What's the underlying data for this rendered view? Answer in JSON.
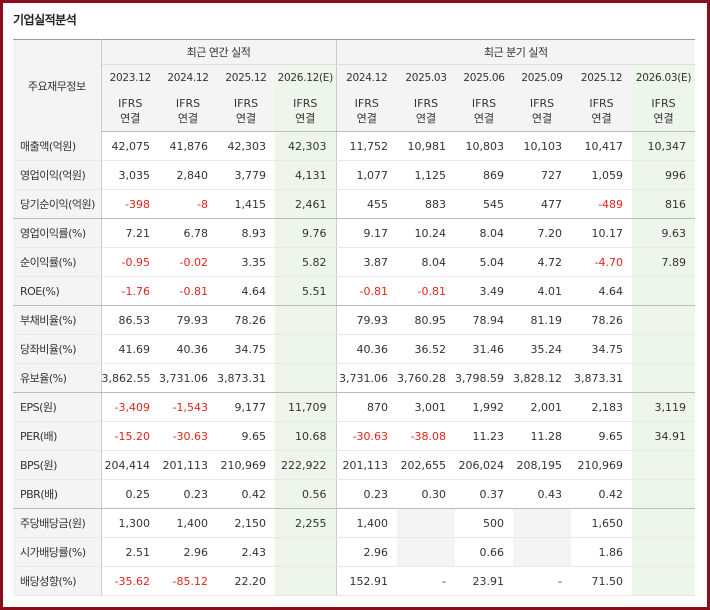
{
  "title": "기업실적분석",
  "header": {
    "label_col": "주요재무정보",
    "annual_group": "최근 연간 실적",
    "quarter_group": "최근 분기 실적",
    "annual_periods": [
      "2023.12",
      "2024.12",
      "2025.12",
      "2026.12(E)"
    ],
    "quarter_periods": [
      "2024.12",
      "2025.03",
      "2025.06",
      "2025.09",
      "2025.12",
      "2026.03(E)"
    ],
    "ifrs_top": "IFRS",
    "ifrs_bottom": "연결"
  },
  "rows": [
    {
      "label": "매출액(억원)",
      "annual": [
        "42,075",
        "41,876",
        "42,303",
        "42,303"
      ],
      "quarter": [
        "11,752",
        "10,981",
        "10,803",
        "10,103",
        "10,417",
        "10,347"
      ]
    },
    {
      "label": "영업이익(억원)",
      "annual": [
        "3,035",
        "2,840",
        "3,779",
        "4,131"
      ],
      "quarter": [
        "1,077",
        "1,125",
        "869",
        "727",
        "1,059",
        "996"
      ]
    },
    {
      "label": "당기순이익(억원)",
      "annual": [
        "-398",
        "-8",
        "1,415",
        "2,461"
      ],
      "quarter": [
        "455",
        "883",
        "545",
        "477",
        "-489",
        "816"
      ]
    },
    {
      "label": "영업이익률(%)",
      "annual": [
        "7.21",
        "6.78",
        "8.93",
        "9.76"
      ],
      "quarter": [
        "9.17",
        "10.24",
        "8.04",
        "7.20",
        "10.17",
        "9.63"
      ]
    },
    {
      "label": "순이익률(%)",
      "annual": [
        "-0.95",
        "-0.02",
        "3.35",
        "5.82"
      ],
      "quarter": [
        "3.87",
        "8.04",
        "5.04",
        "4.72",
        "-4.70",
        "7.89"
      ]
    },
    {
      "label": "ROE(%)",
      "annual": [
        "-1.76",
        "-0.81",
        "4.64",
        "5.51"
      ],
      "quarter": [
        "-0.81",
        "-0.81",
        "3.49",
        "4.01",
        "4.64",
        ""
      ]
    },
    {
      "label": "부채비율(%)",
      "annual": [
        "86.53",
        "79.93",
        "78.26",
        ""
      ],
      "quarter": [
        "79.93",
        "80.95",
        "78.94",
        "81.19",
        "78.26",
        ""
      ]
    },
    {
      "label": "당좌비율(%)",
      "annual": [
        "41.69",
        "40.36",
        "34.75",
        ""
      ],
      "quarter": [
        "40.36",
        "36.52",
        "31.46",
        "35.24",
        "34.75",
        ""
      ]
    },
    {
      "label": "유보율(%)",
      "annual": [
        "3,862.55",
        "3,731.06",
        "3,873.31",
        ""
      ],
      "quarter": [
        "3,731.06",
        "3,760.28",
        "3,798.59",
        "3,828.12",
        "3,873.31",
        ""
      ]
    },
    {
      "label": "EPS(원)",
      "annual": [
        "-3,409",
        "-1,543",
        "9,177",
        "11,709"
      ],
      "quarter": [
        "870",
        "3,001",
        "1,992",
        "2,001",
        "2,183",
        "3,119"
      ]
    },
    {
      "label": "PER(배)",
      "annual": [
        "-15.20",
        "-30.63",
        "9.65",
        "10.68"
      ],
      "quarter": [
        "-30.63",
        "-38.08",
        "11.23",
        "11.28",
        "9.65",
        "34.91"
      ]
    },
    {
      "label": "BPS(원)",
      "annual": [
        "204,414",
        "201,113",
        "210,969",
        "222,922"
      ],
      "quarter": [
        "201,113",
        "202,655",
        "206,024",
        "208,195",
        "210,969",
        ""
      ]
    },
    {
      "label": "PBR(배)",
      "annual": [
        "0.25",
        "0.23",
        "0.42",
        "0.56"
      ],
      "quarter": [
        "0.23",
        "0.30",
        "0.37",
        "0.43",
        "0.42",
        ""
      ]
    },
    {
      "label": "주당배당금(원)",
      "annual": [
        "1,300",
        "1,400",
        "2,150",
        "2,255"
      ],
      "quarter": [
        "1,400",
        "",
        "500",
        "",
        "1,650",
        ""
      ]
    },
    {
      "label": "시가배당률(%)",
      "annual": [
        "2.51",
        "2.96",
        "2.43",
        ""
      ],
      "quarter": [
        "2.96",
        "",
        "0.66",
        "",
        "1.86",
        ""
      ]
    },
    {
      "label": "배당성향(%)",
      "annual": [
        "-35.62",
        "-85.12",
        "22.20",
        ""
      ],
      "quarter": [
        "152.91",
        "-",
        "23.91",
        "-",
        "71.50",
        ""
      ]
    }
  ],
  "colors": {
    "frame": "#8b0d1c",
    "negative": "#e0251b",
    "ifrs": "#e8691e",
    "estimate_bg": "#eef6ec",
    "label_bg": "#f4f4f4"
  }
}
